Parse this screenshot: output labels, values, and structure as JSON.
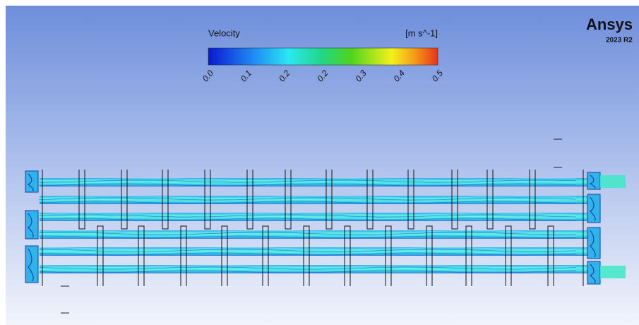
{
  "legend": {
    "title": "Velocity",
    "unit": "[m s^-1]",
    "ticks": [
      "0.0",
      "0.1",
      "0.2",
      "0.2",
      "0.3",
      "0.4",
      "0.5"
    ]
  },
  "brand": {
    "name": "Ansys",
    "version": "2023 R2"
  }
}
